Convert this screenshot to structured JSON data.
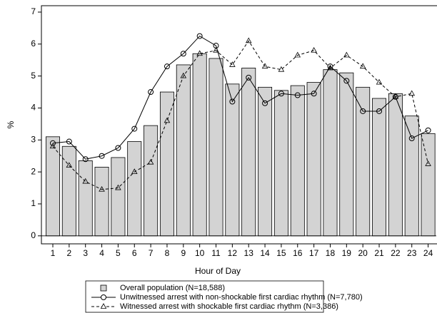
{
  "chart_data": {
    "type": "bar",
    "x_label": "Hour of Day",
    "y_label": "%",
    "x": [
      1,
      2,
      3,
      4,
      5,
      6,
      7,
      8,
      9,
      10,
      11,
      12,
      13,
      14,
      15,
      16,
      17,
      18,
      19,
      20,
      21,
      22,
      23,
      24
    ],
    "xlim": [
      0.3,
      24.5
    ],
    "xticks": [
      1,
      2,
      3,
      4,
      5,
      6,
      7,
      8,
      9,
      10,
      11,
      12,
      13,
      14,
      15,
      16,
      17,
      18,
      19,
      20,
      21,
      22,
      23,
      24
    ],
    "ylim": [
      -0.25,
      7.2
    ],
    "yticks": [
      0,
      1,
      2,
      3,
      4,
      5,
      6,
      7
    ],
    "series": [
      {
        "name": "Overall population (N=18,588)",
        "type": "bar",
        "color": "#d3d3d3",
        "values": [
          3.1,
          2.8,
          2.35,
          2.15,
          2.45,
          2.95,
          3.45,
          4.5,
          5.35,
          5.7,
          5.55,
          4.75,
          5.25,
          4.65,
          4.55,
          4.7,
          4.8,
          5.2,
          5.1,
          4.65,
          4.3,
          4.45,
          3.75,
          3.2
        ]
      },
      {
        "name": "Unwitnessed arrest with non-shockable first cardiac rhythm (N=7,780)",
        "type": "line",
        "color": "#000000",
        "marker": "circle",
        "dashed": false,
        "values": [
          2.9,
          2.95,
          2.4,
          2.5,
          2.75,
          3.35,
          4.5,
          5.3,
          5.7,
          6.25,
          5.95,
          4.2,
          4.95,
          4.15,
          4.45,
          4.4,
          4.45,
          5.3,
          4.85,
          3.9,
          3.9,
          4.35,
          3.05,
          3.3
        ]
      },
      {
        "name": "Witnessed arrest with shockable first cardiac rhythm (N=3,386)",
        "type": "line",
        "color": "#000000",
        "marker": "triangle",
        "dashed": true,
        "values": [
          2.8,
          2.2,
          1.7,
          1.45,
          1.5,
          2.0,
          2.3,
          3.6,
          5.0,
          5.7,
          5.8,
          5.35,
          6.1,
          5.3,
          5.2,
          5.65,
          5.8,
          5.25,
          5.65,
          5.3,
          4.8,
          4.35,
          4.45,
          2.25
        ]
      }
    ]
  }
}
